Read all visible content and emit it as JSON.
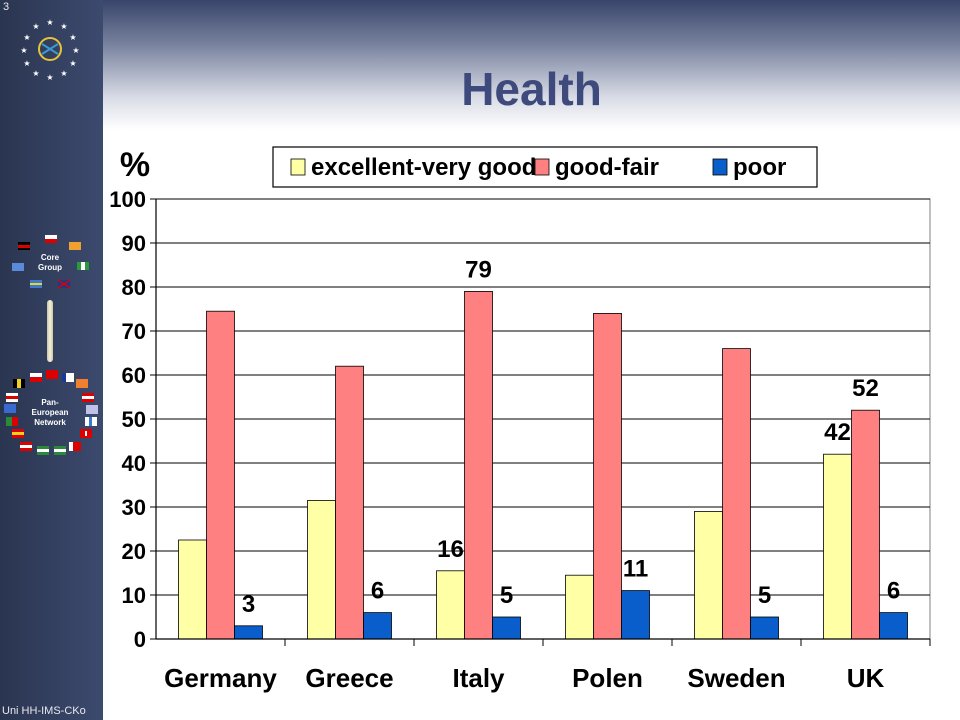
{
  "page_number": "3",
  "footer": "Uni HH-IMS-CKo",
  "sidebar": {
    "core_group_label": [
      "Core",
      "Group"
    ],
    "network_label": [
      "Pan-",
      "European",
      "Network"
    ]
  },
  "title": "Health",
  "chart_data": {
    "type": "bar",
    "ylabel": "%",
    "ylim": [
      0,
      100
    ],
    "yticks": [
      "0",
      "10",
      "20",
      "30",
      "40",
      "50",
      "60",
      "70",
      "80",
      "90",
      "100"
    ],
    "categories": [
      "Germany",
      "Greece",
      "Italy",
      "Polen",
      "Sweden",
      "UK"
    ],
    "legend_position": "top",
    "grid": true,
    "series": [
      {
        "name": "excellent-very good",
        "color": "#ffffa6",
        "values": [
          22.5,
          31.5,
          15.5,
          14.5,
          29,
          42
        ],
        "labels": [
          "",
          "",
          "16",
          "",
          "",
          "42"
        ]
      },
      {
        "name": "good-fair",
        "color": "#ff8080",
        "values": [
          74.5,
          62,
          79,
          74,
          66,
          52
        ],
        "labels": [
          "",
          "",
          "79",
          "",
          "",
          "52"
        ]
      },
      {
        "name": "poor",
        "color": "#0a5ecb",
        "values": [
          3,
          6,
          5,
          11,
          5,
          6
        ],
        "labels": [
          "3",
          "6",
          "5",
          "11",
          "5",
          "6"
        ]
      }
    ]
  }
}
